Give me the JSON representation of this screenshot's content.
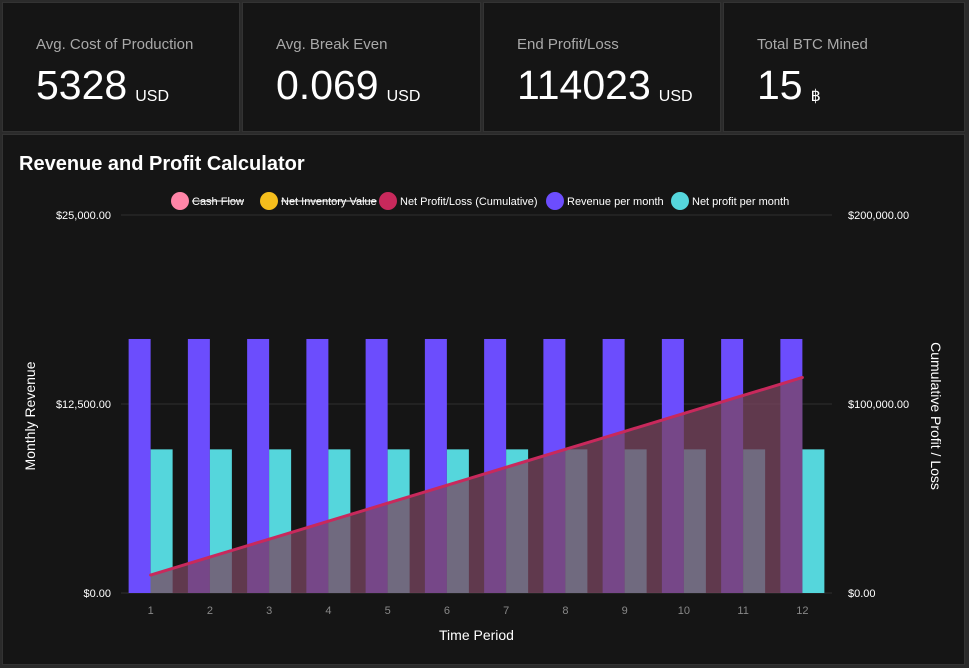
{
  "cards": [
    {
      "label": "Avg. Cost of Production",
      "value": "5328",
      "unit": "USD"
    },
    {
      "label": "Avg. Break Even",
      "value": "0.069",
      "unit": "USD"
    },
    {
      "label": "End Profit/Loss",
      "value": "114023",
      "unit": "USD"
    },
    {
      "label": "Total BTC Mined",
      "value": "15",
      "unit": "฿"
    }
  ],
  "panel_title": "Revenue and Profit Calculator",
  "colors": {
    "cash_flow": "#ff85a8",
    "net_inventory": "#f5be1c",
    "net_profit": "#c8295c",
    "net_profit_fill": "#7a4560",
    "revenue": "#6c4dfd",
    "net_profit_month": "#55d6dc",
    "grid": "#2e2e2e",
    "tick": "#ffffff",
    "xtick": "#888888"
  },
  "chart_data": {
    "type": "bar",
    "title": "Revenue and Profit Calculator",
    "categories": [
      "1",
      "2",
      "3",
      "4",
      "5",
      "6",
      "7",
      "8",
      "9",
      "10",
      "11",
      "12"
    ],
    "xlabel": "Time Period",
    "ylabel": "Monthly Revenue",
    "y2label": "Cumulative Profit / Loss",
    "ylim": [
      0,
      25000
    ],
    "y2lim": [
      0,
      200000
    ],
    "yticks": [
      "$0.00",
      "$12,500.00",
      "$25,000.00"
    ],
    "y2ticks": [
      "$0.00",
      "$100,000.00",
      "$200,000.00"
    ],
    "legend_position": "top",
    "legend": [
      {
        "name": "Cash Flow",
        "hidden": true,
        "colorKey": "cash_flow"
      },
      {
        "name": "Net Inventory Value",
        "hidden": true,
        "colorKey": "net_inventory"
      },
      {
        "name": "Net Profit/Loss (Cumulative)",
        "hidden": false,
        "colorKey": "net_profit"
      },
      {
        "name": "Revenue per month",
        "hidden": false,
        "colorKey": "revenue"
      },
      {
        "name": "Net profit per month",
        "hidden": false,
        "colorKey": "net_profit_month"
      }
    ],
    "series": [
      {
        "name": "Revenue per month",
        "type": "bar",
        "axis": "left",
        "values": [
          16800,
          16800,
          16800,
          16800,
          16800,
          16800,
          16800,
          16800,
          16800,
          16800,
          16800,
          16800
        ]
      },
      {
        "name": "Net profit per month",
        "type": "bar",
        "axis": "left",
        "values": [
          9500,
          9500,
          9500,
          9500,
          9500,
          9500,
          9500,
          9500,
          9500,
          9500,
          9500,
          9500
        ]
      },
      {
        "name": "Net Profit/Loss (Cumulative)",
        "type": "area",
        "axis": "right",
        "values": [
          9500,
          19000,
          28500,
          38000,
          47500,
          57000,
          66500,
          76000,
          85500,
          95000,
          104500,
          114023
        ]
      }
    ]
  }
}
